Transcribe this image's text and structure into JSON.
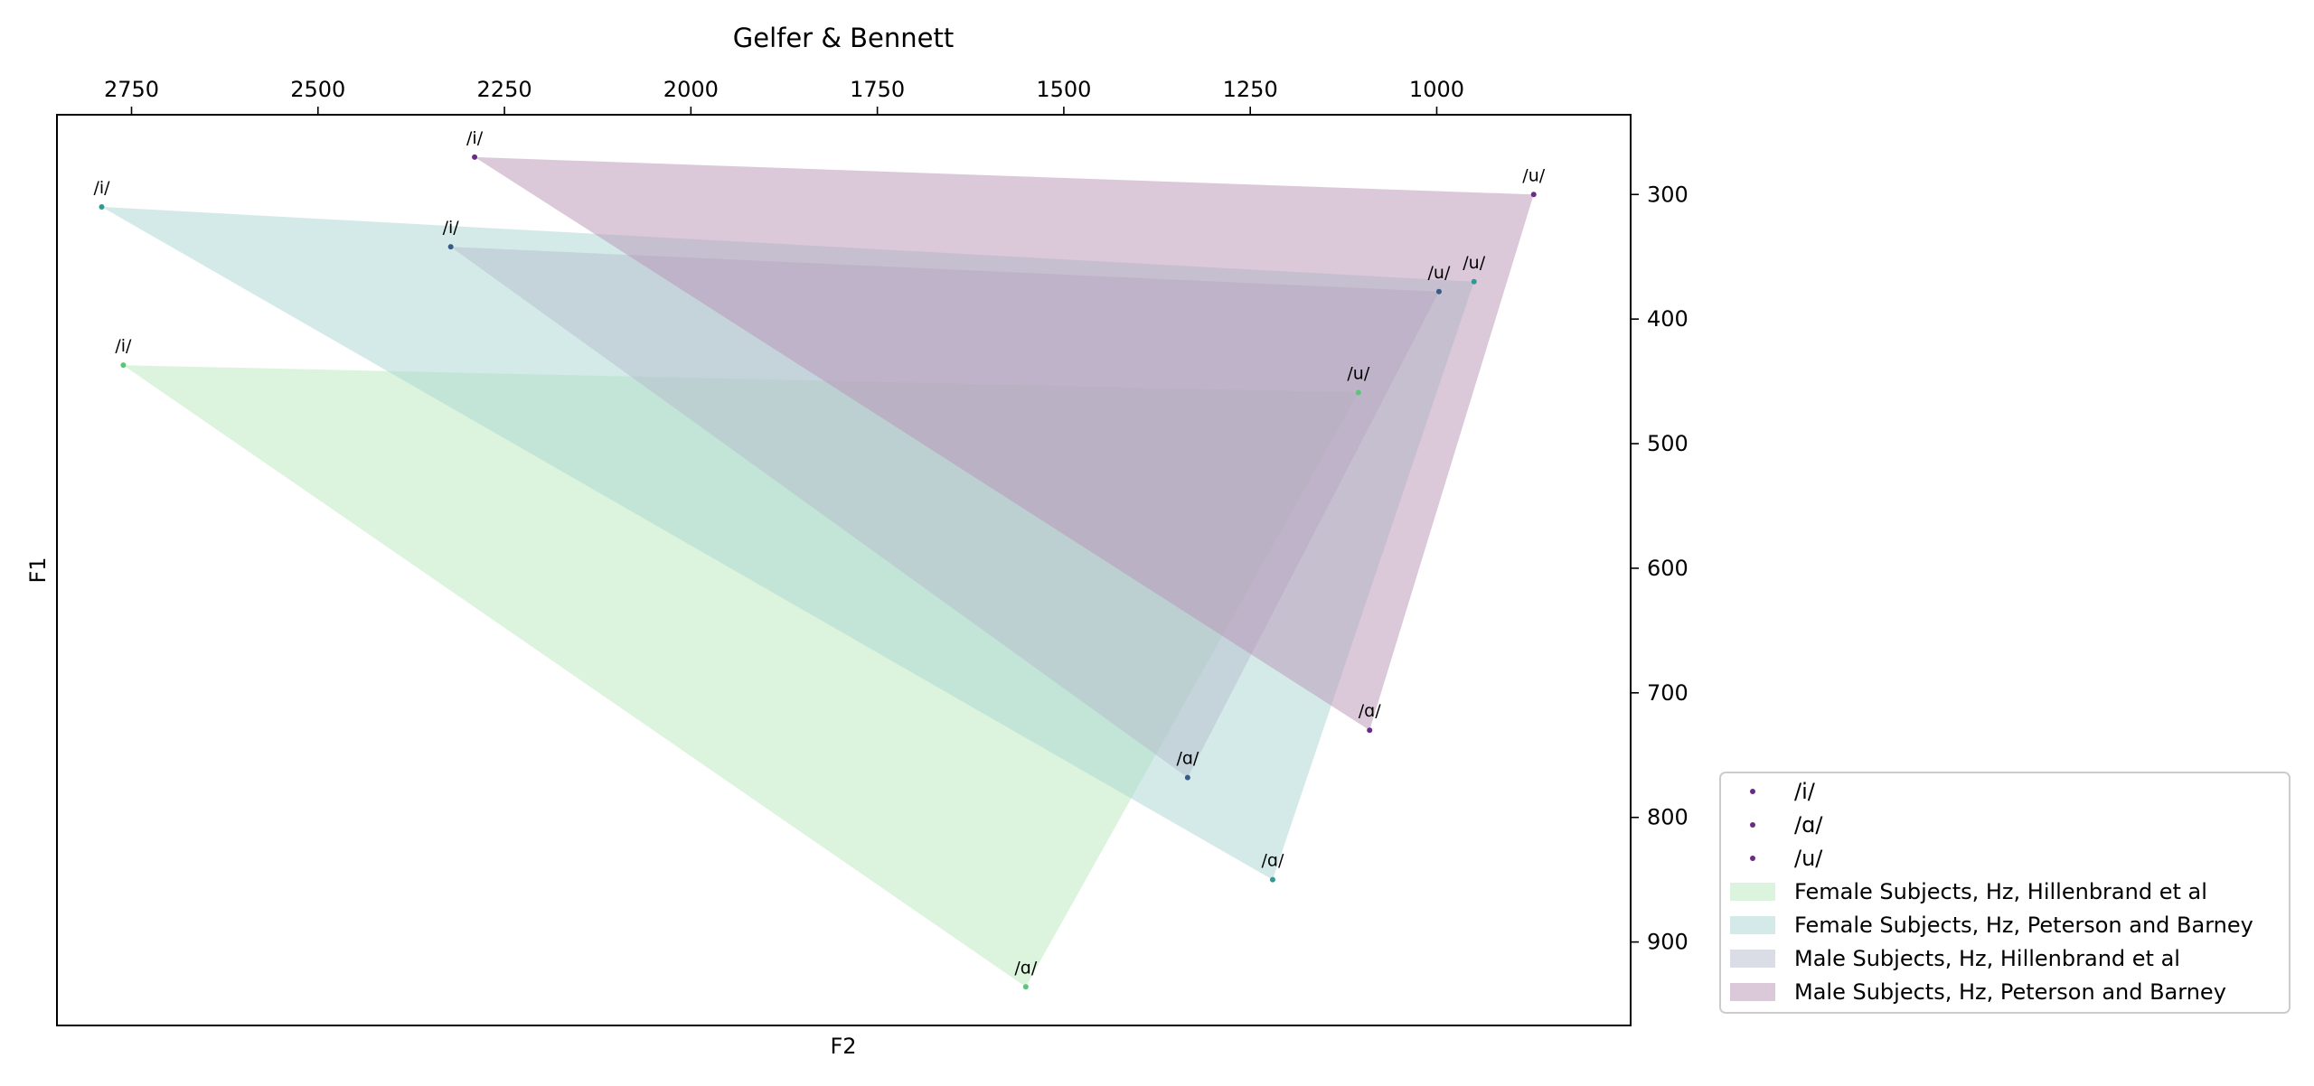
{
  "chart_data": {
    "type": "area",
    "title": "Gelfer & Bennett",
    "xlabel": "F2",
    "ylabel": "F1",
    "xlim": [
      2850,
      740
    ],
    "ylim": [
      967,
      236
    ],
    "x_axis_position": "top",
    "y_axis_position": "right",
    "x_ticks": [
      2750,
      2500,
      2250,
      2000,
      1750,
      1500,
      1250,
      1000
    ],
    "y_ticks": [
      300,
      400,
      500,
      600,
      700,
      800,
      900
    ],
    "grid": false,
    "legend_position": "bottom-right, outside plot",
    "legend": [
      {
        "label": "/i/",
        "kind": "marker",
        "color": "#6a2b86"
      },
      {
        "label": "/ɑ/",
        "kind": "marker",
        "color": "#6a2b86"
      },
      {
        "label": "/u/",
        "kind": "marker",
        "color": "#6a2b86"
      },
      {
        "label": "Female Subjects, Hz, Hillenbrand et al",
        "kind": "patch",
        "color": "#baeabc"
      },
      {
        "label": "Female Subjects, Hz, Peterson and Barney",
        "kind": "patch",
        "color": "#a9d6d4"
      },
      {
        "label": "Male Subjects, Hz, Hillenbrand et al",
        "kind": "patch",
        "color": "#b6bccc"
      },
      {
        "label": "Male Subjects, Hz, Peterson and Barney",
        "kind": "patch",
        "color": "#b794b6"
      }
    ],
    "series": [
      {
        "name": "Female Subjects, Hz, Hillenbrand et al",
        "fill": "#baeabc",
        "point_color": "#5ec47a",
        "points": [
          {
            "vowel": "/i/",
            "F2": 2761,
            "F1": 437
          },
          {
            "vowel": "/u/",
            "F2": 1105,
            "F1": 459
          },
          {
            "vowel": "/ɑ/",
            "F2": 1551,
            "F1": 936
          }
        ]
      },
      {
        "name": "Female Subjects, Hz, Peterson and Barney",
        "fill": "#a9d6d4",
        "point_color": "#2f9a94",
        "points": [
          {
            "vowel": "/i/",
            "F2": 2790,
            "F1": 310
          },
          {
            "vowel": "/u/",
            "F2": 950,
            "F1": 370
          },
          {
            "vowel": "/ɑ/",
            "F2": 1220,
            "F1": 850
          }
        ]
      },
      {
        "name": "Male Subjects, Hz, Hillenbrand et al",
        "fill": "#b6bccc",
        "point_color": "#3a5a86",
        "points": [
          {
            "vowel": "/i/",
            "F2": 2322,
            "F1": 342
          },
          {
            "vowel": "/u/",
            "F2": 997,
            "F1": 378
          },
          {
            "vowel": "/ɑ/",
            "F2": 1334,
            "F1": 768
          }
        ]
      },
      {
        "name": "Male Subjects, Hz, Peterson and Barney",
        "fill": "#b794b6",
        "point_color": "#6a2b86",
        "points": [
          {
            "vowel": "/i/",
            "F2": 2290,
            "F1": 270
          },
          {
            "vowel": "/u/",
            "F2": 870,
            "F1": 300
          },
          {
            "vowel": "/ɑ/",
            "F2": 1090,
            "F1": 730
          }
        ]
      }
    ]
  }
}
